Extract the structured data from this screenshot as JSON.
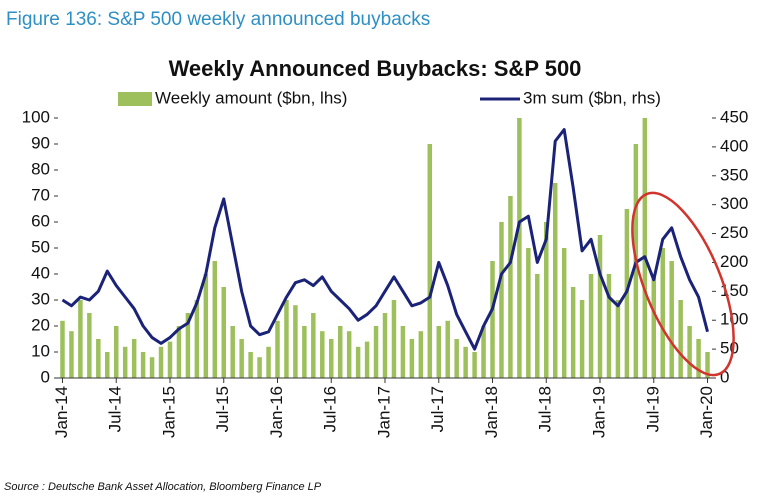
{
  "figure_title": "Figure 136: S&P 500 weekly announced buybacks",
  "source": "Source : Deutsche Bank Asset Allocation, Bloomberg Finance LP",
  "chart_data": {
    "type": "bar_line",
    "title": "Weekly Announced Buybacks: S&P 500",
    "categories": [
      "Jan-14",
      null,
      null,
      null,
      null,
      null,
      "Jul-14",
      null,
      null,
      null,
      null,
      null,
      "Jan-15",
      null,
      null,
      null,
      null,
      null,
      "Jul-15",
      null,
      null,
      null,
      null,
      null,
      "Jan-16",
      null,
      null,
      null,
      null,
      null,
      "Jul-16",
      null,
      null,
      null,
      null,
      null,
      "Jan-17",
      null,
      null,
      null,
      null,
      null,
      "Jul-17",
      null,
      null,
      null,
      null,
      null,
      "Jan-18",
      null,
      null,
      null,
      null,
      null,
      "Jul-18",
      null,
      null,
      null,
      null,
      null,
      "Jan-19",
      null,
      null,
      null,
      null,
      null,
      "Jul-19",
      null,
      null,
      null,
      null,
      null,
      "Jan-20"
    ],
    "series": [
      {
        "name": "Weekly amount ($bn, lhs)",
        "color": "#9dbf5c",
        "kind": "bar",
        "axis": "y",
        "values": [
          22,
          18,
          30,
          25,
          15,
          10,
          20,
          12,
          15,
          10,
          8,
          12,
          14,
          20,
          25,
          30,
          40,
          45,
          35,
          20,
          15,
          10,
          8,
          12,
          22,
          30,
          28,
          20,
          25,
          18,
          15,
          20,
          18,
          12,
          14,
          20,
          25,
          30,
          20,
          15,
          18,
          90,
          20,
          22,
          15,
          12,
          10,
          20,
          45,
          60,
          70,
          100,
          50,
          40,
          60,
          75,
          50,
          35,
          30,
          40,
          55,
          40,
          30,
          65,
          90,
          100,
          40,
          50,
          45,
          30,
          20,
          15,
          10
        ]
      },
      {
        "name": "3m sum ($bn, rhs)",
        "color": "#1b2378",
        "kind": "line",
        "axis": "y2",
        "values": [
          135,
          125,
          140,
          135,
          150,
          185,
          160,
          140,
          120,
          90,
          70,
          60,
          70,
          85,
          95,
          130,
          180,
          260,
          310,
          230,
          150,
          90,
          75,
          80,
          110,
          140,
          165,
          170,
          160,
          175,
          150,
          135,
          120,
          100,
          110,
          125,
          150,
          175,
          150,
          125,
          130,
          140,
          200,
          160,
          110,
          80,
          50,
          90,
          120,
          180,
          200,
          270,
          280,
          200,
          240,
          410,
          430,
          330,
          220,
          240,
          180,
          140,
          125,
          150,
          200,
          210,
          170,
          240,
          260,
          210,
          170,
          140,
          80
        ]
      }
    ],
    "ylim": [
      0,
      100
    ],
    "yticks": [
      0,
      10,
      20,
      30,
      40,
      50,
      60,
      70,
      80,
      90,
      100
    ],
    "y2lim": [
      0,
      450
    ],
    "y2ticks": [
      0,
      50,
      100,
      150,
      200,
      250,
      300,
      350,
      400,
      450
    ]
  }
}
